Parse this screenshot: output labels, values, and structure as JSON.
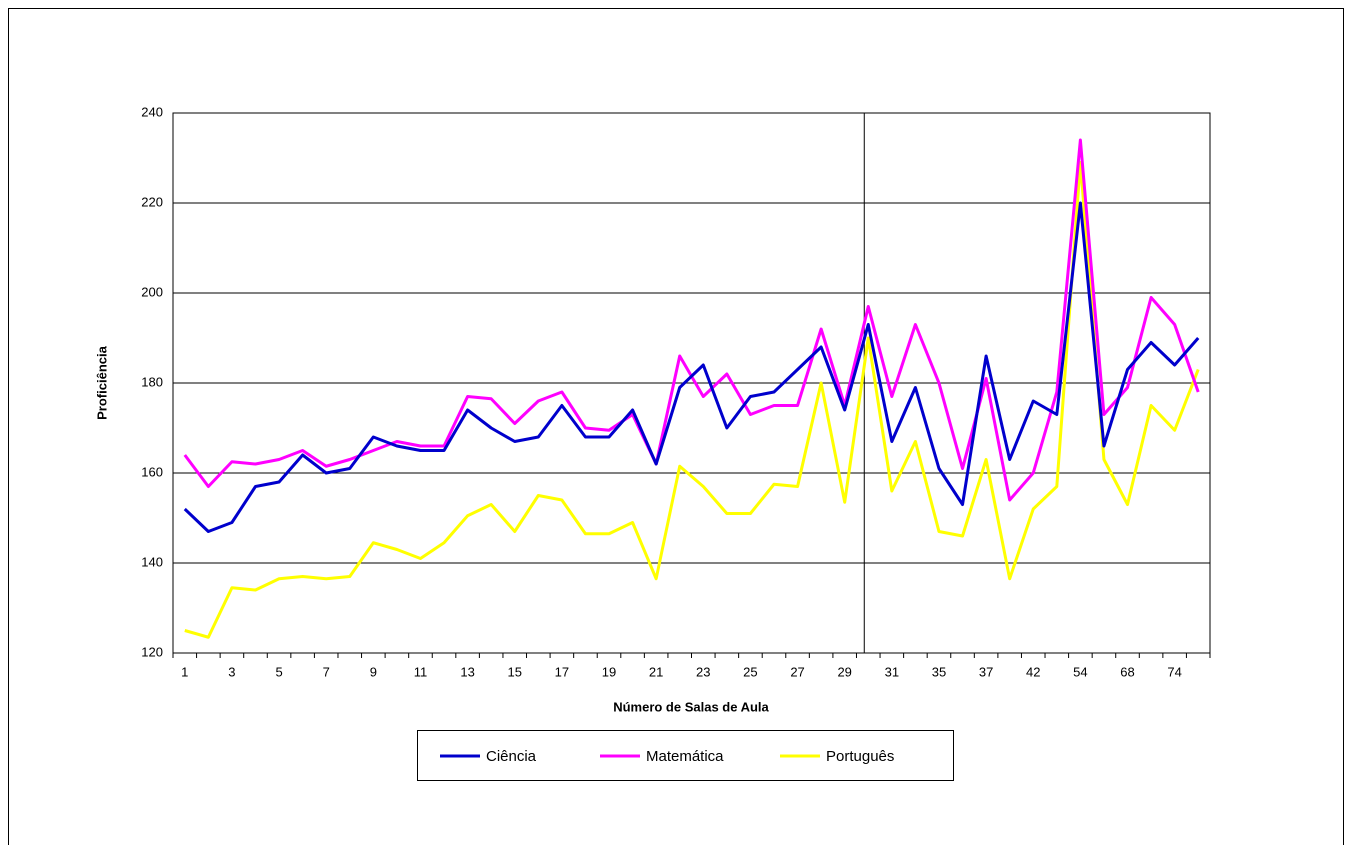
{
  "chart_data": {
    "type": "line",
    "x_label": "Número de Salas de Aula",
    "y_label": "Proficiência",
    "categories": [
      "1",
      null,
      "3",
      null,
      "5",
      null,
      "7",
      null,
      "9",
      null,
      "11",
      null,
      "13",
      null,
      "15",
      null,
      "17",
      null,
      "19",
      null,
      "21",
      null,
      "23",
      null,
      "25",
      null,
      "27",
      null,
      "29",
      null,
      "31",
      null,
      "35",
      null,
      "37",
      null,
      "42",
      null,
      "54",
      null,
      "68",
      null,
      "74",
      null
    ],
    "series": [
      {
        "name": "Ciência",
        "color": "#0000cc",
        "values": [
          152,
          147,
          149,
          157,
          158,
          164,
          160,
          161,
          168,
          166,
          165,
          165,
          174,
          170,
          167,
          168,
          175,
          168,
          168,
          174,
          162,
          179,
          184,
          170,
          177,
          178,
          183,
          188,
          174,
          193,
          167,
          179,
          161,
          153,
          186,
          163,
          176,
          173,
          220,
          166,
          183,
          189,
          184,
          190
        ]
      },
      {
        "name": "Matemática",
        "color": "#ff00ff",
        "values": [
          164,
          157,
          162.5,
          162,
          163,
          165,
          161.5,
          163,
          165,
          167,
          166,
          166,
          177,
          176.5,
          171,
          176,
          178,
          170,
          169.5,
          173,
          162,
          186,
          177,
          182,
          173,
          175,
          175,
          192,
          175,
          197,
          177,
          193,
          180,
          161,
          181,
          154,
          160,
          178,
          234,
          173,
          179,
          199,
          193,
          178
        ]
      },
      {
        "name": "Português",
        "color": "#ffff00",
        "values": [
          125,
          123.5,
          134.5,
          134,
          136.5,
          137,
          136.5,
          137,
          144.5,
          143,
          141,
          144.5,
          150.5,
          153,
          147,
          155,
          154,
          146.5,
          146.5,
          149,
          136.5,
          161.5,
          157,
          151,
          151,
          157.5,
          157,
          180,
          153.5,
          190,
          156,
          167,
          147,
          146,
          163,
          136.5,
          152,
          157,
          229,
          163,
          153,
          175,
          169.5,
          183
        ]
      }
    ],
    "ylim": [
      120,
      240
    ],
    "yticks": [
      120,
      140,
      160,
      180,
      200,
      220,
      240
    ],
    "grid": true,
    "legend": "bottom"
  }
}
